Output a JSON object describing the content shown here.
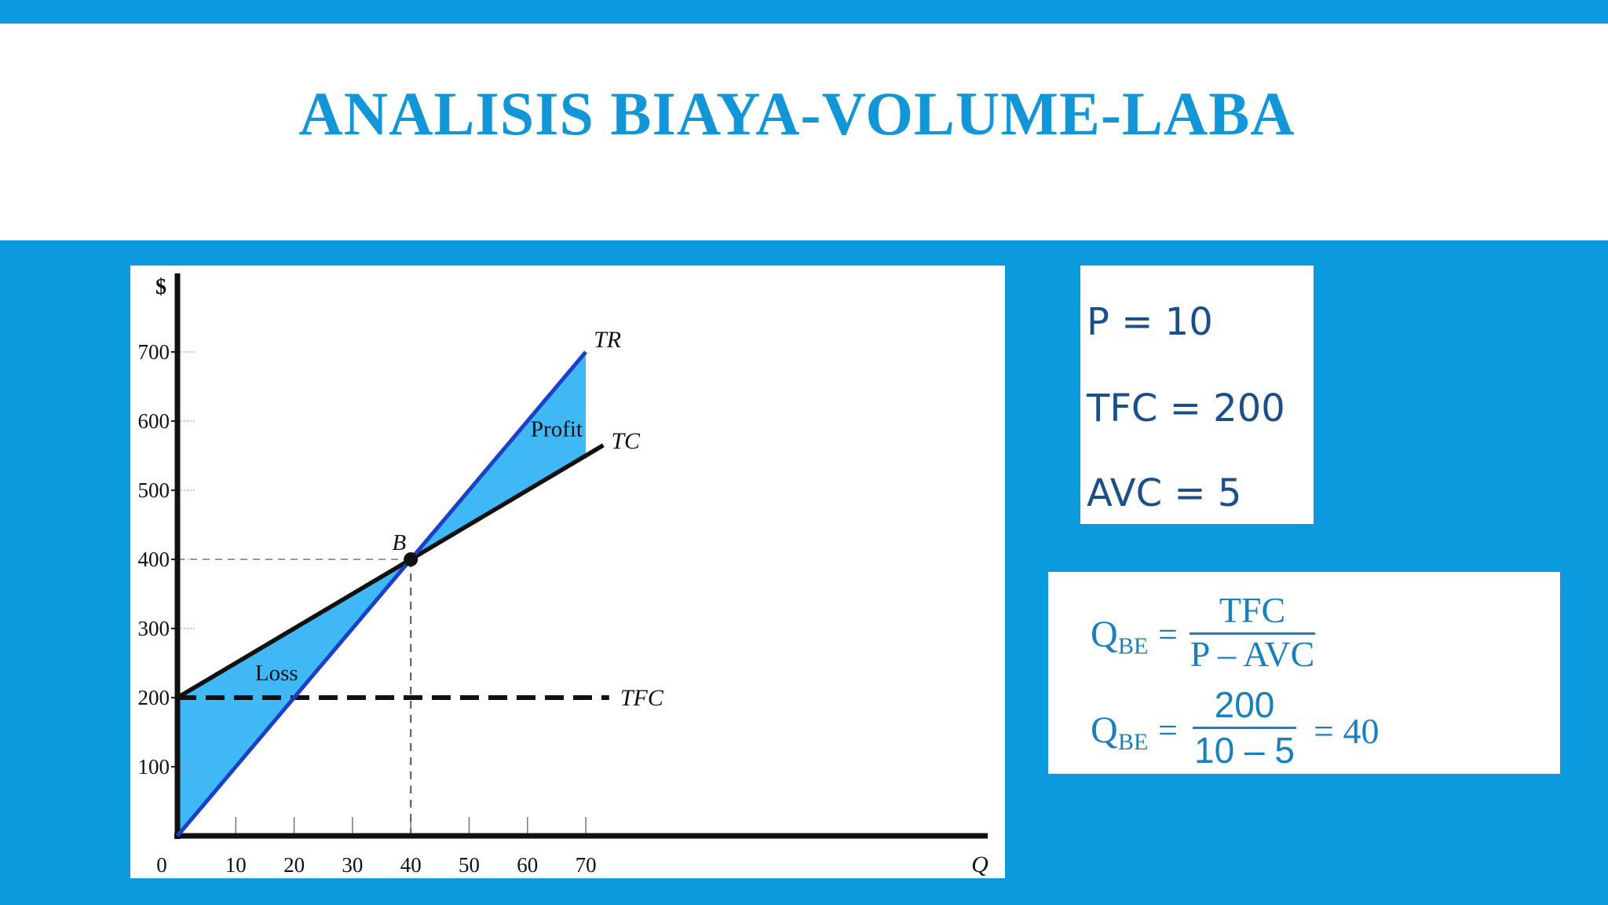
{
  "slide": {
    "title": "ANALISIS BIAYA-VOLUME-LABA"
  },
  "params": {
    "p": "P = 10",
    "tfc": "TFC = 200",
    "avc": "AVC = 5"
  },
  "formula": {
    "q": "Q",
    "sub": "BE",
    "eq": "=",
    "num1": "TFC",
    "den1": "P – AVC",
    "num2": "200",
    "den2": "10 – 5",
    "result": "= 40"
  },
  "chart_data": {
    "type": "line",
    "title": "",
    "xlabel": "Q",
    "ylabel": "$",
    "xlim": [
      0,
      140
    ],
    "ylim": [
      0,
      800
    ],
    "x_ticks": [
      0,
      10,
      20,
      30,
      40,
      50,
      60,
      70
    ],
    "y_ticks": [
      100,
      200,
      300,
      400,
      500,
      600,
      700
    ],
    "series": [
      {
        "name": "TR",
        "x": [
          0,
          70
        ],
        "y": [
          0,
          700
        ]
      },
      {
        "name": "TC",
        "x": [
          0,
          73
        ],
        "y": [
          200,
          565
        ]
      },
      {
        "name": "TFC",
        "x": [
          0,
          74
        ],
        "y": [
          200,
          200
        ]
      }
    ],
    "point": {
      "label": "B",
      "x": 40,
      "y": 400
    },
    "regions": [
      {
        "label": "Loss",
        "x_range": [
          0,
          40
        ]
      },
      {
        "label": "Profit",
        "x_range": [
          40,
          70
        ]
      }
    ],
    "colors": {
      "tr": "#1a3fc8",
      "tc": "#111111",
      "fill": "#3fb8f5"
    }
  }
}
